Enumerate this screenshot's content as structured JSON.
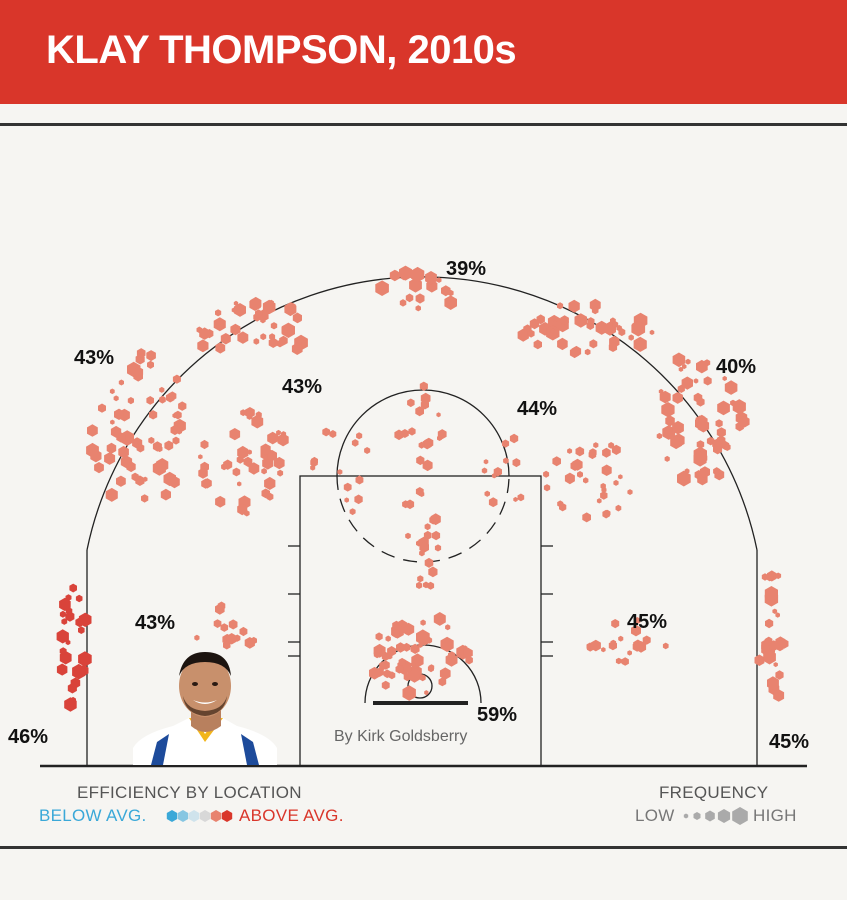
{
  "header": {
    "title": "KLAY THOMPSON, 2010s"
  },
  "credit": "By Kirk Goldsberry",
  "legend": {
    "efficiency_title": "EFFICIENCY BY LOCATION",
    "below_label": "BELOW AVG.",
    "above_label": "ABOVE AVG.",
    "frequency_title": "FREQUENCY",
    "low_label": "LOW",
    "high_label": "HIGH",
    "efficiency_colors": [
      "#3aa8d8",
      "#86c6e2",
      "#cfe3ec",
      "#d8d8d8",
      "#e8836f",
      "#d9362a"
    ],
    "frequency_color": "#aaaaaa"
  },
  "colors": {
    "banner": "#d9362a",
    "above_avg": "#e8836f",
    "well_above_avg": "#d9433a",
    "court_lines": "#222222"
  },
  "player_image": "player-headshot",
  "chart_data": {
    "type": "shot-chart",
    "title": "KLAY THOMPSON, 2010s",
    "zones": [
      {
        "label": "39%",
        "value": 39
      },
      {
        "label": "43%",
        "value": 43
      },
      {
        "label": "40%",
        "value": 40
      },
      {
        "label": "43%",
        "value": 43
      },
      {
        "label": "44%",
        "value": 44
      },
      {
        "label": "43%",
        "value": 43
      },
      {
        "label": "45%",
        "value": 45
      },
      {
        "label": "46%",
        "value": 46
      },
      {
        "label": "45%",
        "value": 45
      },
      {
        "label": "59%",
        "value": 59
      }
    ]
  }
}
